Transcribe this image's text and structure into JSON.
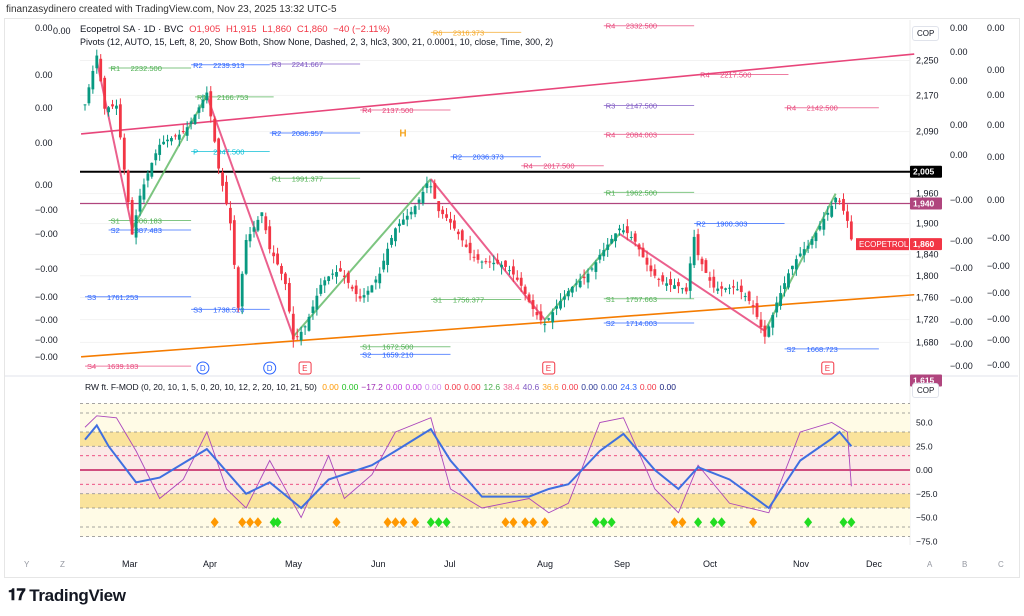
{
  "attribution": "finanzasydinero created with TradingView.com, Nov 23, 2025 13:32 UTC-5",
  "symbol_legend": {
    "name": "Ecopetrol SA · 1D · BVC",
    "open": "O1,905",
    "high": "H1,915",
    "low": "L1,860",
    "close": "C1,860",
    "change": "−40 (−2.11%)",
    "left_value": "0.00"
  },
  "pivots_legend": "Pivots (12, AUTO, 15, Left, 8, 20, Show Both, Show None, Dashed, 2, 3, hlc3, 300, 21, 0.0001, 10, close, Time, 300, 2)",
  "indicator_legend": {
    "name": "RW ft. F-MOD (0, 20, 10, 1, 5, 0, 20, 10, 12, 2, 20, 10, 21, 50)",
    "values": [
      {
        "v": "0.00",
        "color": "#ff9800"
      },
      {
        "v": "0.00",
        "color": "#22c022"
      },
      {
        "v": "−17.2",
        "color": "#9c27b0"
      },
      {
        "v": "0.00",
        "color": "#c040e0"
      },
      {
        "v": "0.00",
        "color": "#c040e0"
      },
      {
        "v": "0.00",
        "color": "#d090f0"
      },
      {
        "v": "0.00",
        "color": "#f23645"
      },
      {
        "v": "0.00",
        "color": "#f23645"
      },
      {
        "v": "12.6",
        "color": "#4caf50"
      },
      {
        "v": "38.4",
        "color": "#f06292"
      },
      {
        "v": "40.6",
        "color": "#7e57c2"
      },
      {
        "v": "36.6",
        "color": "#ffa726"
      },
      {
        "v": "0.00",
        "color": "#f23645"
      },
      {
        "v": "0.00",
        "color": "#283593"
      },
      {
        "v": "0.00",
        "color": "#3949ab"
      },
      {
        "v": "24.3",
        "color": "#2962ff"
      },
      {
        "v": "0.00",
        "color": "#f23645"
      },
      {
        "v": "0.00",
        "color": "#1a237e"
      }
    ]
  },
  "currency": "COP",
  "price_axis": [
    "2,250",
    "2,170",
    "2,090",
    "1,960",
    "1,900",
    "1,840",
    "1,800",
    "1,760",
    "1,720",
    "1,680"
  ],
  "price_tags": [
    {
      "label": "2,005",
      "value": 2005,
      "color": "#000000"
    },
    {
      "label": "1,940",
      "value": 1940,
      "color": "#b0457e"
    },
    {
      "label": "1,860",
      "value": 1860,
      "color": "#f23645"
    },
    {
      "label": "1,615",
      "value": 1615,
      "color": "#b0457e"
    }
  ],
  "last_price_name": "ECOPETROL",
  "left_column": [
    "0.00",
    "0.00",
    "0.00",
    "0.00",
    "0.00",
    "−0.00",
    "−0.00",
    "−0.00",
    "−0.00",
    "−0.00",
    "−0.00",
    "−0.00"
  ],
  "right_col_1": [
    "0.00",
    "0.00",
    "0.00",
    "0.00",
    "0.00",
    "−0.00",
    "−0.00",
    "−0.00",
    "−0.00",
    "−0.00",
    "−0.00",
    "−0.00"
  ],
  "right_col_2": [
    "0.00",
    "0.00",
    "0.00",
    "0.00",
    "0.00",
    "0.00",
    "−0.00",
    "−0.00",
    "−0.00",
    "−0.00",
    "−0.00",
    "−0.00"
  ],
  "indicator_axis": [
    "50.0",
    "25.0",
    "0.00",
    "−25.0",
    "−50.0",
    "−75.0"
  ],
  "time_axis": [
    "Mar",
    "Apr",
    "May",
    "Jun",
    "Jul",
    "Aug",
    "Sep",
    "Oct",
    "Nov",
    "Dec"
  ],
  "axis_letters_left": [
    "Y",
    "Z"
  ],
  "axis_letters_right": [
    "A",
    "B",
    "C"
  ],
  "brand": "TradingView",
  "chart_data": {
    "type": "candlestick",
    "title": "Ecopetrol SA · 1D · BVC",
    "scale": "log",
    "ylim": [
      1600,
      2300
    ],
    "x_unit": "trading day (Feb 10 – Nov 21, 2025)",
    "close_keypoints": [
      [
        0,
        2150
      ],
      [
        3,
        2250
      ],
      [
        5,
        2130
      ],
      [
        8,
        2150
      ],
      [
        12,
        1890
      ],
      [
        14,
        1960
      ],
      [
        19,
        2050
      ],
      [
        25,
        2100
      ],
      [
        31,
        2170
      ],
      [
        34,
        2000
      ],
      [
        37,
        1900
      ],
      [
        39,
        1750
      ],
      [
        41,
        1880
      ],
      [
        45,
        1920
      ],
      [
        47,
        1840
      ],
      [
        51,
        1780
      ],
      [
        53,
        1690
      ],
      [
        56,
        1720
      ],
      [
        60,
        1780
      ],
      [
        65,
        1800
      ],
      [
        70,
        1770
      ],
      [
        75,
        1800
      ],
      [
        79,
        1880
      ],
      [
        83,
        1930
      ],
      [
        87,
        1990
      ],
      [
        88,
        1980
      ],
      [
        90,
        1920
      ],
      [
        94,
        1880
      ],
      [
        98,
        1850
      ],
      [
        103,
        1830
      ],
      [
        111,
        1780
      ],
      [
        117,
        1720
      ],
      [
        122,
        1750
      ],
      [
        127,
        1800
      ],
      [
        131,
        1850
      ],
      [
        136,
        1880
      ],
      [
        140,
        1860
      ],
      [
        144,
        1820
      ],
      [
        149,
        1780
      ],
      [
        153,
        1760
      ],
      [
        155,
        1870
      ],
      [
        156,
        1840
      ],
      [
        160,
        1790
      ],
      [
        165,
        1770
      ],
      [
        170,
        1740
      ],
      [
        173,
        1700
      ],
      [
        176,
        1760
      ],
      [
        179,
        1800
      ],
      [
        184,
        1850
      ],
      [
        188,
        1920
      ],
      [
        191,
        1960
      ],
      [
        192,
        1950
      ],
      [
        194,
        1900
      ],
      [
        195,
        1860
      ]
    ],
    "zigzag": [
      [
        3,
        2250
      ],
      [
        12,
        1890
      ],
      [
        31,
        2170
      ],
      [
        53,
        1690
      ],
      [
        88,
        1990
      ],
      [
        117,
        1720
      ],
      [
        136,
        1880
      ],
      [
        173,
        1700
      ],
      [
        191,
        1960
      ]
    ],
    "trendlines": [
      {
        "name": "upper-trendline",
        "from": [
          -1,
          2085
        ],
        "to": [
          211,
          2265
        ],
        "color": "#e8457a"
      },
      {
        "name": "lower-trendline",
        "from": [
          -1,
          1655
        ],
        "to": [
          211,
          1765
        ],
        "color": "#f57c00"
      }
    ],
    "horizontal_levels": [
      {
        "value": 2005,
        "color": "#000000"
      },
      {
        "value": 1940,
        "color": "#b0457e"
      }
    ],
    "pivots": [
      {
        "label": "R4",
        "price": "2332.500",
        "value": 2332.5,
        "from": 132,
        "to": 155,
        "color": "#e8457a"
      },
      {
        "label": "R4",
        "price": "2217.500",
        "value": 2217.5,
        "from": 156,
        "to": 179,
        "color": "#e8457a"
      },
      {
        "label": "R4",
        "price": "2142.500",
        "value": 2142.5,
        "from": 178,
        "to": 202,
        "color": "#e8457a"
      },
      {
        "label": "R4",
        "price": "2137.500",
        "value": 2137.5,
        "from": 70,
        "to": 93,
        "color": "#e8457a"
      },
      {
        "label": "R6",
        "price": "2316.373",
        "value": 2316.373,
        "from": 88,
        "to": 111,
        "color": "#f5a623"
      },
      {
        "label": "R3",
        "price": "2241.667",
        "value": 2241.667,
        "from": 47,
        "to": 70,
        "color": "#7e57c2"
      },
      {
        "label": "R2",
        "price": "2239.913",
        "value": 2239.913,
        "from": 27,
        "to": 47,
        "color": "#2962ff"
      },
      {
        "label": "R1",
        "price": "2232.500",
        "value": 2232.5,
        "from": 6,
        "to": 27,
        "color": "#4caf50"
      },
      {
        "label": "R1",
        "price": "2166.753",
        "value": 2166.753,
        "from": 28,
        "to": 48,
        "color": "#4caf50"
      },
      {
        "label": "R2",
        "price": "2086.957",
        "value": 2086.957,
        "from": 47,
        "to": 70,
        "color": "#2962ff"
      },
      {
        "label": "R2",
        "price": "2036.373",
        "value": 2036.373,
        "from": 93,
        "to": 116,
        "color": "#2962ff"
      },
      {
        "label": "R4",
        "price": "2017.500",
        "value": 2017.5,
        "from": 111,
        "to": 132,
        "color": "#e8457a"
      },
      {
        "label": "R3",
        "price": "2147.500",
        "value": 2147.5,
        "from": 132,
        "to": 155,
        "color": "#7e57c2"
      },
      {
        "label": "R4",
        "price": "2084.003",
        "value": 2084.003,
        "from": 132,
        "to": 155,
        "color": "#e8457a"
      },
      {
        "label": "P",
        "price": "2047.500",
        "value": 2047.5,
        "from": 27,
        "to": 47,
        "color": "#00bcd4"
      },
      {
        "label": "R1",
        "price": "1991.377",
        "value": 1991.377,
        "from": 47,
        "to": 70,
        "color": "#4caf50"
      },
      {
        "label": "R1",
        "price": "1962.500",
        "value": 1962.5,
        "from": 132,
        "to": 155,
        "color": "#4caf50"
      },
      {
        "label": "S1",
        "price": "1906.183",
        "value": 1906.183,
        "from": 6,
        "to": 27,
        "color": "#4caf50"
      },
      {
        "label": "S2",
        "price": "1887.483",
        "value": 1887.483,
        "from": 6,
        "to": 27,
        "color": "#2962ff"
      },
      {
        "label": "R2",
        "price": "1900.303",
        "value": 1900.303,
        "from": 155,
        "to": 178,
        "color": "#2962ff"
      },
      {
        "label": "S1",
        "price": "1756.377",
        "value": 1756.377,
        "from": 88,
        "to": 111,
        "color": "#4caf50"
      },
      {
        "label": "S3",
        "price": "1761.253",
        "value": 1761.253,
        "from": 0,
        "to": 27,
        "color": "#2962ff"
      },
      {
        "label": "S3",
        "price": "1738.520",
        "value": 1738.52,
        "from": 27,
        "to": 47,
        "color": "#2962ff"
      },
      {
        "label": "S1",
        "price": "1757.663",
        "value": 1757.663,
        "from": 132,
        "to": 155,
        "color": "#4caf50"
      },
      {
        "label": "S2",
        "price": "1714.003",
        "value": 1714.003,
        "from": 132,
        "to": 155,
        "color": "#2962ff"
      },
      {
        "label": "S1",
        "price": "1672.500",
        "value": 1672.5,
        "from": 70,
        "to": 93,
        "color": "#4caf50"
      },
      {
        "label": "S2",
        "price": "1659.210",
        "value": 1659.21,
        "from": 70,
        "to": 93,
        "color": "#2962ff"
      },
      {
        "label": "S2",
        "price": "1668.723",
        "value": 1668.723,
        "from": 178,
        "to": 202,
        "color": "#2962ff"
      },
      {
        "label": "S4",
        "price": "1639.183",
        "value": 1639.183,
        "from": 0,
        "to": 27,
        "color": "#e8457a"
      }
    ],
    "events": [
      {
        "glyph": "D",
        "day": 30,
        "color": "#2962ff"
      },
      {
        "glyph": "D",
        "day": 47,
        "color": "#2962ff"
      },
      {
        "glyph": "E",
        "day": 56,
        "color": "#f23645"
      },
      {
        "glyph": "E",
        "day": 118,
        "color": "#f23645"
      },
      {
        "glyph": "E",
        "day": 189,
        "color": "#f23645"
      }
    ],
    "marker_H": {
      "glyph": "H",
      "day": 80,
      "value": 2080
    },
    "indicator": {
      "name": "RW ft. F-MOD",
      "ylim": [
        -80,
        75
      ],
      "bands": {
        "strong": [
          25,
          40
        ],
        "neutral": [
          -25,
          25
        ],
        "outer": [
          40,
          70
        ]
      },
      "blue_line": [
        [
          0,
          32
        ],
        [
          3,
          47
        ],
        [
          6,
          25
        ],
        [
          13,
          -13
        ],
        [
          19,
          -8
        ],
        [
          31,
          22
        ],
        [
          41,
          -25
        ],
        [
          47,
          -13
        ],
        [
          55,
          -40
        ],
        [
          62,
          -10
        ],
        [
          73,
          5
        ],
        [
          79,
          20
        ],
        [
          88,
          43
        ],
        [
          93,
          10
        ],
        [
          101,
          -28
        ],
        [
          113,
          -28
        ],
        [
          118,
          -20
        ],
        [
          123,
          -15
        ],
        [
          131,
          20
        ],
        [
          137,
          38
        ],
        [
          145,
          0
        ],
        [
          151,
          -20
        ],
        [
          156,
          3
        ],
        [
          164,
          -10
        ],
        [
          174,
          -40
        ],
        [
          182,
          10
        ],
        [
          190,
          33
        ],
        [
          192,
          40
        ],
        [
          195,
          25
        ]
      ],
      "purple_line": [
        [
          0,
          45
        ],
        [
          3,
          57
        ],
        [
          8,
          55
        ],
        [
          13,
          20
        ],
        [
          19,
          -30
        ],
        [
          25,
          -10
        ],
        [
          31,
          40
        ],
        [
          36,
          -20
        ],
        [
          41,
          -40
        ],
        [
          47,
          10
        ],
        [
          55,
          -50
        ],
        [
          62,
          15
        ],
        [
          66,
          -30
        ],
        [
          73,
          -5
        ],
        [
          79,
          40
        ],
        [
          88,
          55
        ],
        [
          93,
          -20
        ],
        [
          101,
          -40
        ],
        [
          113,
          -30
        ],
        [
          118,
          -45
        ],
        [
          123,
          -35
        ],
        [
          131,
          50
        ],
        [
          137,
          55
        ],
        [
          145,
          -20
        ],
        [
          151,
          -45
        ],
        [
          156,
          5
        ],
        [
          164,
          -35
        ],
        [
          174,
          -45
        ],
        [
          182,
          40
        ],
        [
          190,
          50
        ],
        [
          194,
          40
        ],
        [
          195,
          -17.2
        ]
      ],
      "diamonds": [
        {
          "day": 33,
          "color": "#ff9800"
        },
        {
          "day": 40,
          "color": "#ff9800"
        },
        {
          "day": 42,
          "color": "#ff9800"
        },
        {
          "day": 44,
          "color": "#ff9800"
        },
        {
          "day": 48,
          "color": "#22dd22"
        },
        {
          "day": 49,
          "color": "#22dd22"
        },
        {
          "day": 64,
          "color": "#ff9800"
        },
        {
          "day": 77,
          "color": "#ff9800"
        },
        {
          "day": 79,
          "color": "#ff9800"
        },
        {
          "day": 81,
          "color": "#ff9800"
        },
        {
          "day": 84,
          "color": "#ff9800"
        },
        {
          "day": 88,
          "color": "#22dd22"
        },
        {
          "day": 90,
          "color": "#22dd22"
        },
        {
          "day": 92,
          "color": "#22dd22"
        },
        {
          "day": 107,
          "color": "#ff9800"
        },
        {
          "day": 109,
          "color": "#ff9800"
        },
        {
          "day": 112,
          "color": "#ff9800"
        },
        {
          "day": 114,
          "color": "#ff9800"
        },
        {
          "day": 117,
          "color": "#ff9800"
        },
        {
          "day": 130,
          "color": "#22dd22"
        },
        {
          "day": 132,
          "color": "#22dd22"
        },
        {
          "day": 134,
          "color": "#22dd22"
        },
        {
          "day": 150,
          "color": "#ff9800"
        },
        {
          "day": 152,
          "color": "#ff9800"
        },
        {
          "day": 156,
          "color": "#22dd22"
        },
        {
          "day": 160,
          "color": "#22dd22"
        },
        {
          "day": 162,
          "color": "#22dd22"
        },
        {
          "day": 170,
          "color": "#ff9800"
        },
        {
          "day": 184,
          "color": "#22dd22"
        },
        {
          "day": 193,
          "color": "#22dd22"
        },
        {
          "day": 195,
          "color": "#22dd22"
        }
      ]
    }
  }
}
